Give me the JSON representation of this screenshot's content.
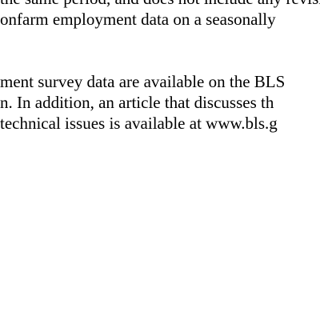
{
  "document": {
    "paragraphs": [
      {
        "lines": [
          "the same period, and does not include any revisions to the",
          "onfarm employment data on a seasonally"
        ]
      },
      {
        "lines": [
          "ment survey data are available on the BLS",
          "n. In addition, an article that discusses th",
          "technical issues is available at www.bls.g"
        ]
      }
    ]
  }
}
